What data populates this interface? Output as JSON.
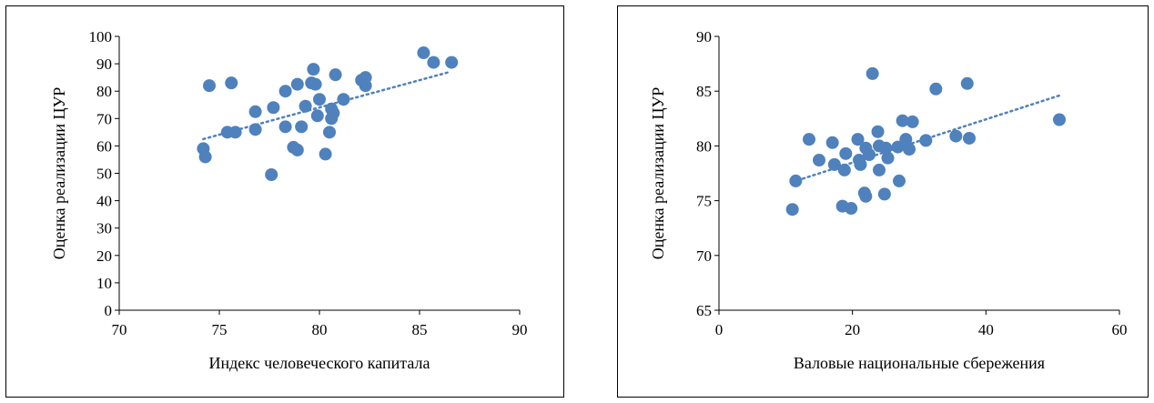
{
  "chart_data": [
    {
      "type": "scatter",
      "xlabel": "Индекс человеческого капитала",
      "ylabel": "Оценка реализации ЦУР",
      "xlim": [
        70,
        90
      ],
      "ylim": [
        0,
        100
      ],
      "xticks": [
        "70",
        "75",
        "80",
        "85",
        "90"
      ],
      "yticks": [
        "0",
        "10",
        "20",
        "30",
        "40",
        "50",
        "60",
        "70",
        "80",
        "90",
        "100"
      ],
      "grid": false,
      "legend": "none",
      "marker_color": "#4f81bd",
      "trendline": {
        "style": "dotted",
        "x": [
          74.2,
          86.5
        ],
        "y": [
          62.5,
          87
        ]
      },
      "points": [
        {
          "x": 74.2,
          "y": 59
        },
        {
          "x": 74.3,
          "y": 56
        },
        {
          "x": 74.5,
          "y": 82
        },
        {
          "x": 75.4,
          "y": 65
        },
        {
          "x": 75.6,
          "y": 83
        },
        {
          "x": 75.8,
          "y": 65
        },
        {
          "x": 76.8,
          "y": 66
        },
        {
          "x": 76.8,
          "y": 72.5
        },
        {
          "x": 77.6,
          "y": 49.5
        },
        {
          "x": 77.7,
          "y": 74
        },
        {
          "x": 78.3,
          "y": 80
        },
        {
          "x": 78.3,
          "y": 67
        },
        {
          "x": 78.7,
          "y": 59.5
        },
        {
          "x": 78.9,
          "y": 58.5
        },
        {
          "x": 78.9,
          "y": 82.5
        },
        {
          "x": 79.1,
          "y": 67
        },
        {
          "x": 79.3,
          "y": 74.5
        },
        {
          "x": 79.6,
          "y": 83
        },
        {
          "x": 79.7,
          "y": 88
        },
        {
          "x": 79.8,
          "y": 82.5
        },
        {
          "x": 79.9,
          "y": 71
        },
        {
          "x": 80.0,
          "y": 77
        },
        {
          "x": 80.3,
          "y": 57
        },
        {
          "x": 80.5,
          "y": 65
        },
        {
          "x": 80.6,
          "y": 70
        },
        {
          "x": 80.6,
          "y": 73.5
        },
        {
          "x": 80.7,
          "y": 72
        },
        {
          "x": 80.8,
          "y": 86
        },
        {
          "x": 81.2,
          "y": 77
        },
        {
          "x": 82.1,
          "y": 84
        },
        {
          "x": 82.3,
          "y": 82
        },
        {
          "x": 82.3,
          "y": 85
        },
        {
          "x": 85.2,
          "y": 94
        },
        {
          "x": 85.7,
          "y": 90.5
        },
        {
          "x": 86.6,
          "y": 90.5
        }
      ]
    },
    {
      "type": "scatter",
      "xlabel": "Валовые национальные сбережения",
      "ylabel": "Оценка реализации ЦУР",
      "xlim": [
        0,
        60
      ],
      "ylim": [
        65,
        90
      ],
      "xticks": [
        "0",
        "20",
        "40",
        "60"
      ],
      "yticks": [
        "65",
        "70",
        "75",
        "80",
        "85",
        "90"
      ],
      "grid": false,
      "legend": "none",
      "marker_color": "#4f81bd",
      "trendline": {
        "style": "dotted",
        "x": [
          11,
          51
        ],
        "y": [
          76.7,
          84.6
        ]
      },
      "points": [
        {
          "x": 11.0,
          "y": 74.2
        },
        {
          "x": 11.5,
          "y": 76.8
        },
        {
          "x": 13.5,
          "y": 80.6
        },
        {
          "x": 15.0,
          "y": 78.7
        },
        {
          "x": 17.0,
          "y": 80.3
        },
        {
          "x": 17.3,
          "y": 78.3
        },
        {
          "x": 18.5,
          "y": 74.5
        },
        {
          "x": 18.8,
          "y": 77.8
        },
        {
          "x": 19.0,
          "y": 79.3
        },
        {
          "x": 19.8,
          "y": 74.3
        },
        {
          "x": 20.8,
          "y": 80.6
        },
        {
          "x": 21.0,
          "y": 78.7
        },
        {
          "x": 21.2,
          "y": 78.3
        },
        {
          "x": 21.8,
          "y": 75.7
        },
        {
          "x": 22.0,
          "y": 75.4
        },
        {
          "x": 22.0,
          "y": 79.8
        },
        {
          "x": 22.5,
          "y": 79.2
        },
        {
          "x": 23.0,
          "y": 86.6
        },
        {
          "x": 23.8,
          "y": 81.3
        },
        {
          "x": 24.0,
          "y": 77.8
        },
        {
          "x": 24.0,
          "y": 80.0
        },
        {
          "x": 24.8,
          "y": 75.6
        },
        {
          "x": 25.0,
          "y": 79.8
        },
        {
          "x": 25.3,
          "y": 78.9
        },
        {
          "x": 26.8,
          "y": 79.9
        },
        {
          "x": 27.0,
          "y": 76.8
        },
        {
          "x": 27.5,
          "y": 82.3
        },
        {
          "x": 28.0,
          "y": 80.6
        },
        {
          "x": 28.5,
          "y": 79.7
        },
        {
          "x": 29.0,
          "y": 82.2
        },
        {
          "x": 31.0,
          "y": 80.5
        },
        {
          "x": 32.5,
          "y": 85.2
        },
        {
          "x": 35.5,
          "y": 80.9
        },
        {
          "x": 37.2,
          "y": 85.7
        },
        {
          "x": 37.5,
          "y": 80.7
        },
        {
          "x": 51.0,
          "y": 82.4
        }
      ]
    }
  ]
}
